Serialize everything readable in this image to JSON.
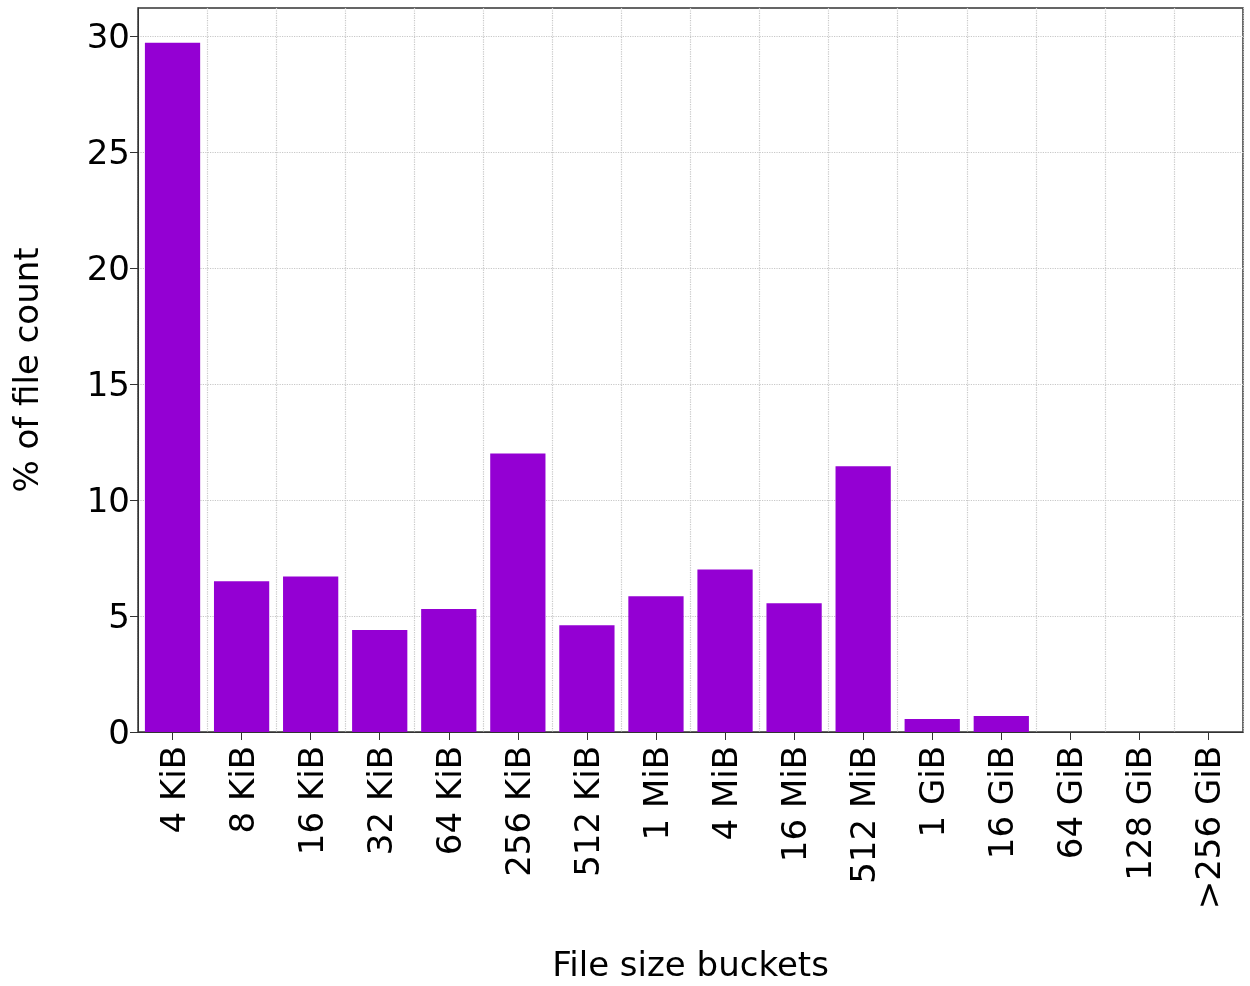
{
  "chart_data": {
    "type": "bar",
    "xlabel": "File size buckets",
    "ylabel": "% of file count",
    "categories": [
      "4 KiB",
      "8 KiB",
      "16 KiB",
      "32 KiB",
      "64 KiB",
      "256 KiB",
      "512 KiB",
      "1 MiB",
      "4 MiB",
      "16 MiB",
      "512 MiB",
      "1 GiB",
      "16 GiB",
      "64 GiB",
      "128 GiB",
      ">256 GiB"
    ],
    "values": [
      29.7,
      6.5,
      6.7,
      4.4,
      5.3,
      12.0,
      4.6,
      5.85,
      7.0,
      5.55,
      11.45,
      0.56,
      0.69,
      0,
      0,
      0
    ],
    "color": "#9400d3",
    "ylim": [
      0,
      31.2
    ],
    "yticks": [
      0,
      5,
      10,
      15,
      20,
      25,
      30
    ],
    "grid": true
  }
}
